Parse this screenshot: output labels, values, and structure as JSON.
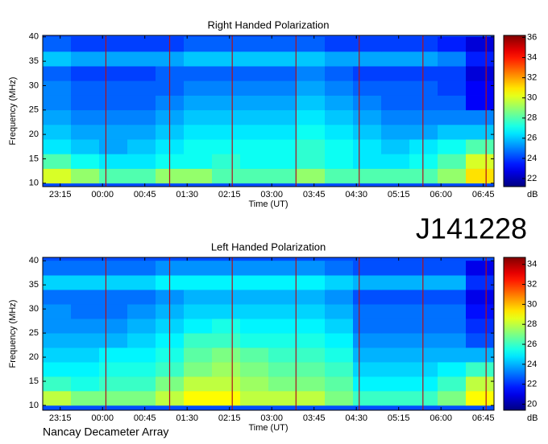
{
  "observation_id": "J141228",
  "instrument": "Nancay Decameter Array",
  "chart_data": [
    {
      "type": "heatmap",
      "title": "Right Handed Polarization",
      "x_label": "Time (UT)",
      "y_label": "Frequency (MHz)",
      "colorbar_label": "dB",
      "xlim": [
        22.94,
        30.94
      ],
      "xticks": [
        {
          "value": 23.25,
          "label": "23:15"
        },
        {
          "value": 24,
          "label": "00:00"
        },
        {
          "value": 24.75,
          "label": "00:45"
        },
        {
          "value": 25.5,
          "label": "01:30"
        },
        {
          "value": 26.25,
          "label": "02:15"
        },
        {
          "value": 27,
          "label": "03:00"
        },
        {
          "value": 27.75,
          "label": "03:45"
        },
        {
          "value": 28.5,
          "label": "04:30"
        },
        {
          "value": 29.25,
          "label": "05:15"
        },
        {
          "value": 30,
          "label": "06:00"
        },
        {
          "value": 30.75,
          "label": "06:45"
        }
      ],
      "ylim": [
        9.3,
        40.3
      ],
      "yticks": [
        10,
        15,
        20,
        25,
        30,
        35,
        40
      ],
      "zlim": [
        21.2,
        36.2
      ],
      "zticks": [
        22,
        24,
        26,
        28,
        30,
        32,
        34,
        36
      ],
      "colormap": "jet",
      "vlines": [
        24.06,
        25.19,
        26.3,
        27.43,
        28.55,
        29.68,
        30.8
      ],
      "vline_color": "#b0101a",
      "x": [
        22.94,
        23.44,
        23.94,
        24.44,
        24.94,
        25.44,
        25.94,
        26.44,
        26.94,
        27.44,
        27.94,
        28.44,
        28.94,
        29.44,
        29.94,
        30.44,
        30.94
      ],
      "y": [
        10,
        13,
        16,
        19,
        22,
        25,
        28,
        31,
        34,
        37,
        40
      ],
      "z": [
        [
          30,
          29,
          28,
          28,
          29,
          29,
          28,
          28,
          28,
          29,
          28,
          28,
          28,
          28,
          29,
          31
        ],
        [
          28,
          27,
          26.5,
          26.5,
          27,
          27,
          27.5,
          27,
          27,
          27.5,
          27,
          26.5,
          26.5,
          27,
          28,
          30
        ],
        [
          26.5,
          26,
          25.5,
          26,
          26.5,
          27,
          27,
          27,
          27,
          27.5,
          27,
          26.5,
          26,
          26.5,
          27,
          28
        ],
        [
          26,
          25.5,
          25.5,
          25.5,
          26,
          26.5,
          26.5,
          26.5,
          26.5,
          27,
          26.5,
          26,
          25.5,
          25.5,
          26,
          26
        ],
        [
          25.5,
          25,
          25,
          25,
          25.5,
          26,
          26,
          26,
          26,
          26.5,
          26,
          25.5,
          25,
          25,
          25,
          25
        ],
        [
          25,
          24.5,
          24.5,
          24.5,
          25,
          25.5,
          25.5,
          25.5,
          25.5,
          26,
          25.5,
          25,
          24.5,
          24.5,
          24.5,
          23
        ],
        [
          25,
          24.5,
          24.5,
          24.5,
          24.5,
          25,
          25,
          25,
          25,
          25.5,
          25,
          24.5,
          24.5,
          24.5,
          24,
          23
        ],
        [
          24.5,
          24,
          24,
          24,
          24.5,
          24.5,
          24.5,
          24.5,
          24.5,
          25,
          24.5,
          24,
          24,
          24,
          24,
          22.5
        ],
        [
          26,
          25.5,
          25.5,
          25.5,
          25.5,
          26,
          26,
          26,
          26,
          26,
          25.5,
          25.5,
          25.5,
          25.5,
          25,
          23.5
        ],
        [
          24.5,
          24,
          24,
          24,
          24,
          24.5,
          24.5,
          24.5,
          24.5,
          24.5,
          24,
          24,
          24,
          24,
          23.5,
          22.5
        ]
      ]
    },
    {
      "type": "heatmap",
      "title": "Left Handed Polarization",
      "x_label": "Time (UT)",
      "y_label": "Frequency (MHz)",
      "colorbar_label": "dB",
      "xlim": [
        22.94,
        30.94
      ],
      "xticks": [
        {
          "value": 23.25,
          "label": "23:15"
        },
        {
          "value": 24,
          "label": "00:00"
        },
        {
          "value": 24.75,
          "label": "00:45"
        },
        {
          "value": 25.5,
          "label": "01:30"
        },
        {
          "value": 26.25,
          "label": "02:15"
        },
        {
          "value": 27,
          "label": "03:00"
        },
        {
          "value": 27.75,
          "label": "03:45"
        },
        {
          "value": 28.5,
          "label": "04:30"
        },
        {
          "value": 29.25,
          "label": "05:15"
        },
        {
          "value": 30,
          "label": "06:00"
        },
        {
          "value": 30.75,
          "label": "06:45"
        }
      ],
      "ylim": [
        9,
        40.7
      ],
      "yticks": [
        10,
        15,
        20,
        25,
        30,
        35,
        40
      ],
      "zlim": [
        19.4,
        34.7
      ],
      "zticks": [
        20,
        22,
        24,
        26,
        28,
        30,
        32,
        34
      ],
      "colormap": "jet",
      "vlines": [
        24.06,
        25.19,
        26.3,
        27.43,
        28.55,
        29.68,
        30.8
      ],
      "vline_color": "#b0101a",
      "x": [
        22.94,
        23.44,
        23.94,
        24.44,
        24.94,
        25.44,
        25.94,
        26.44,
        26.94,
        27.44,
        27.94,
        28.44,
        28.94,
        29.44,
        29.94,
        30.44,
        30.94
      ],
      "y": [
        10,
        13,
        16,
        19,
        22,
        25,
        28,
        31,
        34,
        37,
        40
      ],
      "z": [
        [
          28,
          27,
          27,
          27,
          28,
          29,
          29,
          28,
          28,
          28,
          27,
          26,
          26,
          26,
          27,
          29
        ],
        [
          26,
          25.5,
          26,
          26,
          27,
          28,
          28,
          27.5,
          27,
          27,
          26.5,
          25,
          25,
          25,
          26,
          28
        ],
        [
          25,
          25,
          25.5,
          25.5,
          26,
          27,
          27.5,
          27,
          26.5,
          26.5,
          26,
          24.5,
          24.5,
          24.5,
          25,
          26
        ],
        [
          24.5,
          24.5,
          25,
          25,
          25.5,
          26.5,
          27,
          26.5,
          26,
          26,
          25.5,
          24,
          24,
          24,
          24,
          24
        ],
        [
          24,
          24,
          24,
          24.5,
          25,
          26,
          26,
          25.5,
          25.5,
          25.5,
          25,
          23.5,
          23.5,
          23.5,
          23.5,
          22.5
        ],
        [
          23.5,
          23.5,
          23.5,
          24,
          24.5,
          25,
          25.5,
          25,
          25,
          25,
          24.5,
          23,
          23,
          23,
          23,
          22
        ],
        [
          23.5,
          23,
          23,
          23.5,
          24,
          24.5,
          24.5,
          24.5,
          24.5,
          24.5,
          24,
          23,
          23,
          23,
          23,
          21.5
        ],
        [
          23,
          23,
          23,
          23,
          23.5,
          24,
          24,
          24,
          24,
          24,
          23.5,
          22.5,
          22.5,
          22.5,
          22.5,
          21
        ],
        [
          24.5,
          24.5,
          24.5,
          24.5,
          25,
          25,
          25,
          25,
          25,
          25,
          24.5,
          24,
          24,
          24,
          24,
          22
        ],
        [
          23,
          23,
          23,
          23,
          23.5,
          23.5,
          23.5,
          23.5,
          23.5,
          23.5,
          23,
          22.5,
          22.5,
          22.5,
          22.5,
          21
        ]
      ]
    }
  ]
}
